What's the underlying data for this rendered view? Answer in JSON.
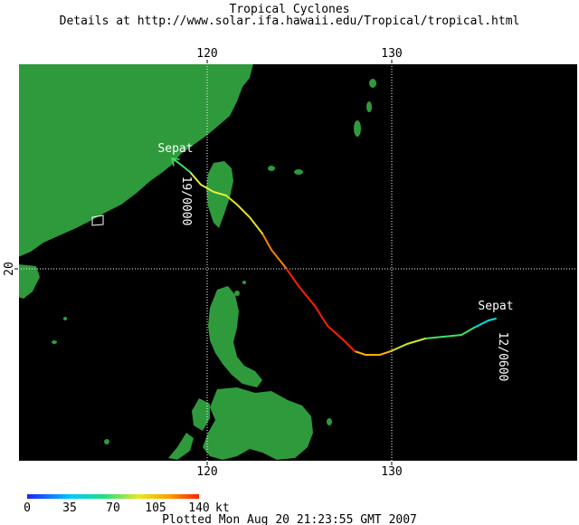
{
  "header": {
    "title": "Tropical Cyclones",
    "subtitle": "Details at http://www.solar.ifa.hawaii.edu/Tropical/tropical.html"
  },
  "map": {
    "lon_labels_top": [
      "120",
      "130"
    ],
    "lon_labels_bottom": [
      "120",
      "130"
    ],
    "lat_label_left": "20",
    "colors": {
      "ocean": "#000000",
      "land": "#2e9a3c",
      "grid": "#ffffff",
      "frame": "#ffffff"
    }
  },
  "storm": {
    "name_start": "Sepat",
    "name_end": "Sepat",
    "start_time": "12/0600",
    "end_time": "19/0000"
  },
  "legend": {
    "unit": "kt",
    "ticks": [
      "0",
      "35",
      "70",
      "105",
      "140"
    ],
    "colors": [
      "#2020ff",
      "#00c8ff",
      "#20e080",
      "#e8e820",
      "#ffa000",
      "#ff2000"
    ]
  },
  "footer": {
    "plotted": "Plotted Mon Aug 20 21:23:55 GMT 2007"
  }
}
